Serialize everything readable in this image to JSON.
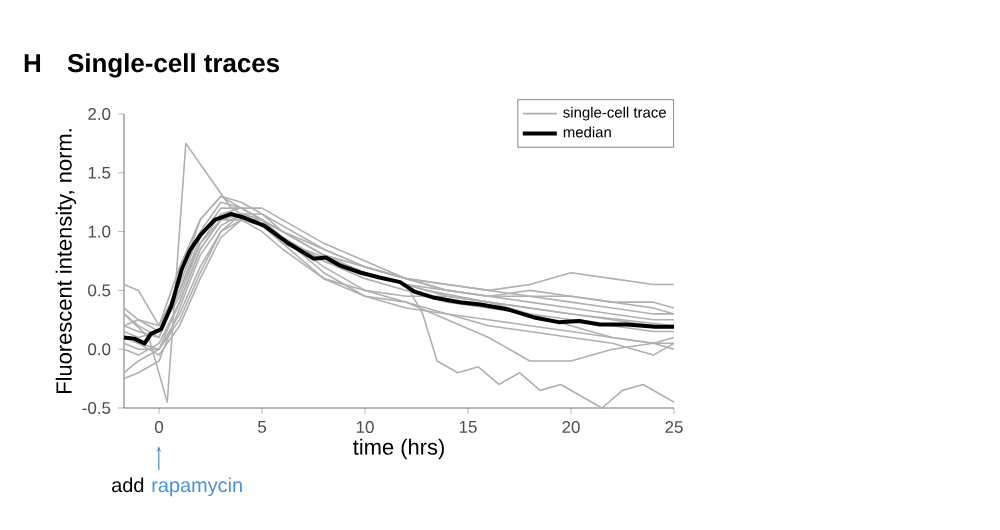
{
  "chart_data": {
    "type": "line",
    "title": "Single-cell traces",
    "xlabel": "time (hrs)",
    "ylabel": "Fluorescent intensity, norm.",
    "annotations": [
      "H",
      "add",
      "rapamycin"
    ],
    "x": [
      -1.7,
      -1,
      0,
      1,
      2,
      3,
      4,
      5,
      6,
      8,
      10,
      12,
      14,
      16,
      18,
      20,
      22,
      24,
      25
    ],
    "series": [
      {
        "name": "single-cell trace",
        "color": "#b0b0b0",
        "x": [
          -1.7,
          -0.5,
          0.4,
          1.3,
          2.5,
          3.5,
          5,
          7,
          10,
          13,
          16,
          20,
          25
        ],
        "values": [
          0.3,
          0.1,
          -0.45,
          1.75,
          1.45,
          1.2,
          1.05,
          0.85,
          0.65,
          0.5,
          0.4,
          0.3,
          0.2
        ]
      },
      {
        "color": "#b0b0b0",
        "x": [
          -1.7,
          -1,
          0,
          1,
          2,
          3,
          4,
          5,
          6,
          7,
          8,
          9,
          10,
          11,
          12,
          12.8,
          13.5,
          14.5,
          15.5,
          16.5,
          17.5,
          18.5,
          19.5,
          20.5,
          21.5,
          22.5,
          23.5,
          24.5,
          25
        ],
        "values": [
          0.2,
          0.25,
          0.15,
          0.5,
          0.9,
          1.1,
          1.15,
          1.1,
          1.0,
          0.9,
          0.8,
          0.7,
          0.65,
          0.6,
          0.55,
          0.3,
          -0.1,
          -0.2,
          -0.15,
          -0.3,
          -0.2,
          -0.35,
          -0.3,
          -0.4,
          -0.5,
          -0.35,
          -0.3,
          -0.4,
          -0.45
        ]
      },
      {
        "color": "#b0b0b0",
        "values": [
          0.55,
          0.5,
          0.2,
          0.7,
          1.1,
          1.3,
          1.25,
          1.15,
          1.0,
          0.85,
          0.7,
          0.6,
          0.55,
          0.5,
          0.55,
          0.65,
          0.6,
          0.55,
          0.55
        ]
      },
      {
        "color": "#b0b0b0",
        "values": [
          0.3,
          0.2,
          0.1,
          0.5,
          0.95,
          1.2,
          1.2,
          1.1,
          1.0,
          0.8,
          0.7,
          0.6,
          0.5,
          0.45,
          0.45,
          0.4,
          0.35,
          0.3,
          0.3
        ]
      },
      {
        "color": "#b0b0b0",
        "values": [
          0.0,
          -0.05,
          0.05,
          0.4,
          0.85,
          1.1,
          1.15,
          1.05,
          0.95,
          0.75,
          0.6,
          0.5,
          0.4,
          0.35,
          0.3,
          0.25,
          0.2,
          0.15,
          0.15
        ]
      },
      {
        "color": "#b0b0b0",
        "values": [
          -0.2,
          -0.1,
          0.0,
          0.3,
          0.7,
          1.0,
          1.1,
          1.1,
          1.0,
          0.8,
          0.65,
          0.55,
          0.45,
          0.4,
          0.3,
          0.2,
          0.1,
          0.05,
          0.05
        ]
      },
      {
        "color": "#b0b0b0",
        "values": [
          0.2,
          0.15,
          0.1,
          0.6,
          1.1,
          1.3,
          1.2,
          1.1,
          0.95,
          0.7,
          0.5,
          0.45,
          0.45,
          0.4,
          0.35,
          0.3,
          0.25,
          0.2,
          0.2
        ]
      },
      {
        "color": "#b0b0b0",
        "values": [
          0.1,
          0.05,
          -0.05,
          0.2,
          0.6,
          0.95,
          1.1,
          1.05,
          0.9,
          0.75,
          0.65,
          0.55,
          0.5,
          0.45,
          0.4,
          0.35,
          0.3,
          0.25,
          0.25
        ]
      },
      {
        "color": "#b0b0b0",
        "values": [
          0.35,
          0.25,
          0.2,
          0.55,
          1.0,
          1.25,
          1.2,
          1.1,
          0.95,
          0.65,
          0.45,
          0.4,
          0.3,
          0.25,
          0.2,
          0.15,
          0.1,
          0.05,
          0.0
        ]
      },
      {
        "color": "#b0b0b0",
        "values": [
          -0.25,
          -0.2,
          -0.1,
          0.35,
          0.8,
          1.05,
          1.15,
          1.15,
          1.05,
          0.85,
          0.7,
          0.6,
          0.55,
          0.5,
          0.45,
          0.45,
          0.4,
          0.4,
          0.35
        ]
      },
      {
        "color": "#b0b0b0",
        "values": [
          0.15,
          0.1,
          0.15,
          0.45,
          0.9,
          1.15,
          1.2,
          1.2,
          1.1,
          0.9,
          0.75,
          0.6,
          0.5,
          0.45,
          0.5,
          0.45,
          0.4,
          0.35,
          0.3
        ]
      },
      {
        "color": "#b0b0b0",
        "values": [
          0.05,
          0.0,
          0.0,
          0.25,
          0.65,
          1.0,
          1.15,
          1.1,
          0.9,
          0.6,
          0.45,
          0.35,
          0.3,
          0.2,
          0.15,
          0.1,
          0.05,
          -0.05,
          0.05
        ]
      },
      {
        "color": "#b0b0b0",
        "values": [
          0.1,
          0.05,
          0.0,
          0.4,
          0.85,
          1.1,
          1.1,
          1.0,
          0.85,
          0.6,
          0.5,
          0.4,
          0.25,
          0.1,
          -0.1,
          -0.1,
          0.0,
          0.05,
          0.1
        ]
      },
      {
        "name": "median",
        "color": "#000000",
        "x": [
          -1.7,
          -1.2,
          -0.7,
          -0.4,
          0.1,
          0.6,
          1.1,
          1.5,
          2.0,
          2.7,
          3.5,
          4.1,
          5.1,
          6.2,
          7.5,
          8.1,
          8.8,
          9.8,
          10.7,
          11.7,
          12.4,
          13.3,
          14.6,
          15.6,
          16.9,
          18.2,
          19.4,
          20.4,
          21.4,
          22.7,
          24.1,
          25
        ],
        "values": [
          0.1,
          0.09,
          0.05,
          0.13,
          0.17,
          0.37,
          0.68,
          0.84,
          0.97,
          1.1,
          1.15,
          1.12,
          1.05,
          0.91,
          0.77,
          0.78,
          0.71,
          0.65,
          0.61,
          0.57,
          0.49,
          0.44,
          0.4,
          0.38,
          0.34,
          0.27,
          0.23,
          0.24,
          0.21,
          0.21,
          0.19,
          0.19
        ]
      }
    ],
    "xlim": [
      -1.7,
      25
    ],
    "ylim": [
      -0.5,
      2.0
    ],
    "xticks": [
      0,
      5,
      10,
      15,
      20,
      25
    ],
    "yticks": [
      -0.5,
      {
        "value": 0,
        "label": "0.0"
      },
      0.5,
      {
        "value": 1,
        "label": "1.0"
      },
      1.5,
      {
        "value": 2,
        "label": "2.0"
      }
    ],
    "grid": false,
    "legend": "top right",
    "marker": "none",
    "line_style": "solid"
  }
}
